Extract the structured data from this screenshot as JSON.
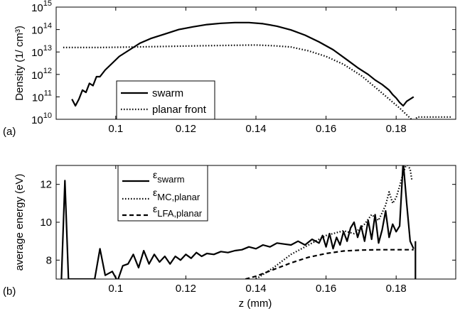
{
  "chart_data": [
    {
      "panel_label": "(a)",
      "type": "line",
      "title": "",
      "xlabel": "",
      "ylabel": "Density (1/ cm³)",
      "y_scale": "log",
      "xlim": [
        0.083,
        0.197
      ],
      "ylim_exponent": [
        10,
        15
      ],
      "y_tick_labels": [
        {
          "base": "10",
          "exp": "10"
        },
        {
          "base": "10",
          "exp": "11"
        },
        {
          "base": "10",
          "exp": "12"
        },
        {
          "base": "10",
          "exp": "13"
        },
        {
          "base": "10",
          "exp": "14"
        },
        {
          "base": "10",
          "exp": "15"
        }
      ],
      "x_ticks": [
        0.1,
        0.12,
        0.14,
        0.16,
        0.18
      ],
      "x_tick_labels": [
        "0.1",
        "0.12",
        "0.14",
        "0.16",
        "0.18"
      ],
      "legend": {
        "position": "bottom-left",
        "entries": [
          "swarm",
          "planar front"
        ]
      },
      "grid": false,
      "series": [
        {
          "name": "swarm",
          "style": "solid",
          "color": "#000000",
          "x": [
            0.0875,
            0.0885,
            0.0895,
            0.0905,
            0.0915,
            0.0925,
            0.0935,
            0.0945,
            0.0955,
            0.097,
            0.099,
            0.101,
            0.104,
            0.107,
            0.11,
            0.114,
            0.118,
            0.122,
            0.126,
            0.13,
            0.134,
            0.138,
            0.142,
            0.146,
            0.15,
            0.154,
            0.158,
            0.162,
            0.166,
            0.169,
            0.172,
            0.174,
            0.176,
            0.178,
            0.179,
            0.18,
            0.181,
            0.182,
            0.183,
            0.184,
            0.185
          ],
          "y_log10": [
            10.9,
            10.6,
            10.9,
            11.3,
            11.2,
            11.6,
            11.5,
            11.9,
            11.9,
            12.2,
            12.5,
            12.8,
            13.1,
            13.4,
            13.6,
            13.8,
            14.0,
            14.12,
            14.22,
            14.28,
            14.31,
            14.31,
            14.26,
            14.15,
            13.98,
            13.75,
            13.45,
            13.1,
            12.65,
            12.3,
            12.0,
            11.75,
            11.55,
            11.3,
            11.1,
            10.95,
            10.75,
            10.6,
            10.8,
            10.9,
            11.0
          ]
        },
        {
          "name": "planar front",
          "style": "dotted",
          "color": "#000000",
          "x": [
            0.085,
            0.095,
            0.105,
            0.115,
            0.125,
            0.135,
            0.14,
            0.145,
            0.15,
            0.155,
            0.16,
            0.165,
            0.17,
            0.175,
            0.178,
            0.181,
            0.183,
            0.185,
            0.186,
            0.188,
            0.19,
            0.192,
            0.194,
            0.196
          ],
          "y_log10": [
            13.2,
            13.2,
            13.22,
            13.25,
            13.28,
            13.3,
            13.31,
            13.28,
            13.22,
            13.05,
            12.8,
            12.45,
            11.95,
            11.3,
            10.9,
            10.5,
            10.2,
            9.9,
            10.1,
            10.1,
            10.1,
            10.1,
            10.1,
            10.1
          ]
        }
      ]
    },
    {
      "panel_label": "(b)",
      "type": "line",
      "title": "",
      "xlabel": "z (mm)",
      "ylabel": "average energy (eV)",
      "xlim": [
        0.083,
        0.197
      ],
      "ylim": [
        7,
        13
      ],
      "y_ticks": [
        8,
        10,
        12
      ],
      "y_tick_labels": [
        "8",
        "10",
        "12"
      ],
      "x_ticks": [
        0.1,
        0.12,
        0.14,
        0.16,
        0.18
      ],
      "x_tick_labels": [
        "0.1",
        "0.12",
        "0.14",
        "0.16",
        "0.18"
      ],
      "legend": {
        "position": "top-left",
        "entries": [
          {
            "symbol": "ε",
            "sub": "swarm"
          },
          {
            "symbol": "ε",
            "sub": "MC,planar"
          },
          {
            "symbol": "ε",
            "sub": "LFA,planar"
          }
        ]
      },
      "grid": false,
      "series": [
        {
          "name": "εswarm",
          "style": "solid",
          "color": "#000000",
          "x": [
            0.0845,
            0.0855,
            0.0865,
            0.094,
            0.0955,
            0.097,
            0.099,
            0.1005,
            0.102,
            0.1035,
            0.105,
            0.1065,
            0.108,
            0.1095,
            0.111,
            0.1125,
            0.114,
            0.1155,
            0.117,
            0.1185,
            0.12,
            0.1215,
            0.123,
            0.1245,
            0.126,
            0.128,
            0.13,
            0.132,
            0.134,
            0.136,
            0.138,
            0.14,
            0.142,
            0.144,
            0.146,
            0.148,
            0.15,
            0.152,
            0.154,
            0.156,
            0.158,
            0.159,
            0.16,
            0.161,
            0.162,
            0.163,
            0.164,
            0.165,
            0.166,
            0.167,
            0.168,
            0.169,
            0.17,
            0.171,
            0.172,
            0.173,
            0.174,
            0.175,
            0.176,
            0.177,
            0.178,
            0.179,
            0.18,
            0.181,
            0.182,
            0.183,
            0.184,
            0.185
          ],
          "y": [
            7.0,
            12.2,
            7.0,
            7.0,
            8.6,
            7.2,
            7.4,
            6.9,
            7.7,
            7.8,
            8.3,
            7.6,
            8.5,
            7.8,
            8.3,
            7.9,
            8.2,
            7.8,
            8.2,
            8.0,
            8.3,
            8.1,
            8.4,
            8.2,
            8.35,
            8.3,
            8.45,
            8.4,
            8.5,
            8.55,
            8.7,
            8.6,
            8.8,
            8.7,
            8.9,
            8.85,
            8.8,
            9.0,
            8.8,
            9.1,
            8.9,
            9.3,
            8.7,
            9.4,
            8.6,
            9.2,
            8.8,
            9.5,
            9.0,
            9.7,
            10.0,
            9.2,
            9.8,
            9.0,
            10.1,
            9.1,
            10.4,
            8.9,
            9.6,
            10.6,
            9.2,
            9.9,
            9.5,
            9.8,
            13.2,
            11.0,
            9.0,
            8.6
          ]
        },
        {
          "name": "εMC,planar",
          "style": "dotted",
          "color": "#000000",
          "x": [
            0.14,
            0.145,
            0.15,
            0.155,
            0.16,
            0.165,
            0.168,
            0.171,
            0.173,
            0.175,
            0.177,
            0.178,
            0.179,
            0.18,
            0.181,
            0.182,
            0.183,
            0.184,
            0.1845
          ],
          "y": [
            7.0,
            7.6,
            8.3,
            8.8,
            9.3,
            9.55,
            9.4,
            9.9,
            10.4,
            10.1,
            10.9,
            11.6,
            11.0,
            11.3,
            11.9,
            12.6,
            13.1,
            12.8,
            12.2
          ]
        },
        {
          "name": "εLFA,planar",
          "style": "dashed",
          "color": "#000000",
          "x": [
            0.137,
            0.14,
            0.145,
            0.15,
            0.155,
            0.16,
            0.165,
            0.17,
            0.175,
            0.18,
            0.185
          ],
          "y": [
            7.0,
            7.15,
            7.5,
            7.85,
            8.15,
            8.35,
            8.48,
            8.53,
            8.55,
            8.55,
            8.55
          ]
        }
      ],
      "extra_segments": [
        {
          "x": [
            0.1855,
            0.1855
          ],
          "y": [
            7.0,
            9.0
          ],
          "style": "solid"
        }
      ]
    }
  ]
}
